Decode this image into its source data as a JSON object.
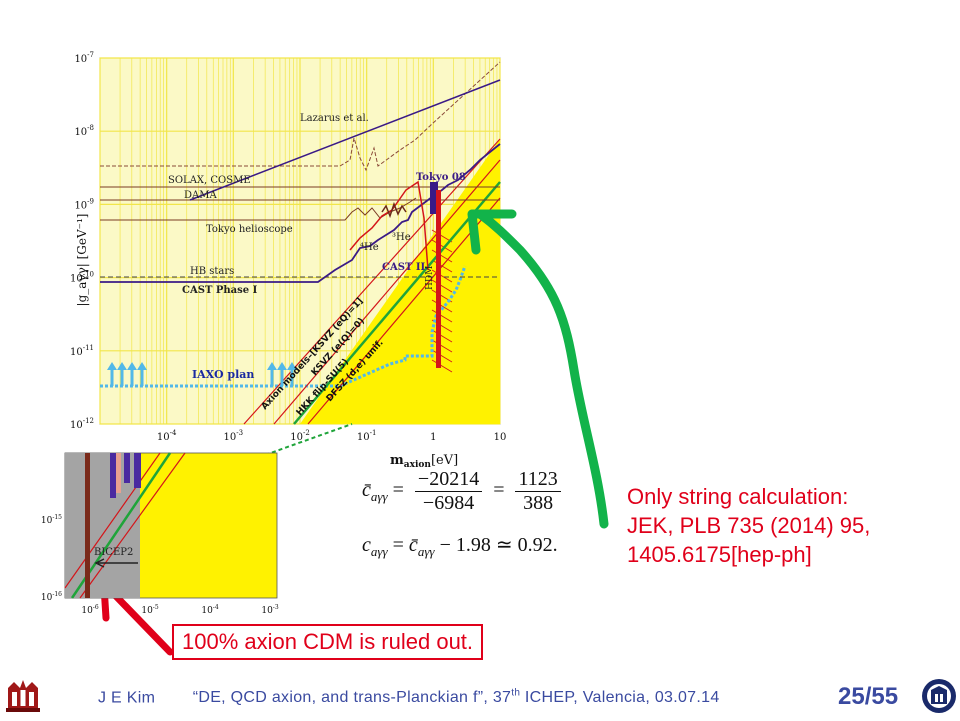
{
  "main_chart": {
    "x_axis_label": "m_axion[eV]",
    "x_label_main": "m",
    "x_label_sub": "axion",
    "x_label_unit": "[eV]",
    "y_axis_label": "|g_aγγ| [GeV⁻¹]",
    "x_ticks": [
      {
        "value": 0.0001,
        "label": "10",
        "exp": "-4"
      },
      {
        "value": 0.001,
        "label": "10",
        "exp": "-3"
      },
      {
        "value": 0.01,
        "label": "10",
        "exp": "-2"
      },
      {
        "value": 0.1,
        "label": "10",
        "exp": "-1"
      },
      {
        "value": 1,
        "label": "1",
        "exp": ""
      },
      {
        "value": 10,
        "label": "10",
        "exp": ""
      }
    ],
    "y_ticks": [
      {
        "value": 1e-07,
        "label": "10",
        "exp": "-7"
      },
      {
        "value": 1e-08,
        "label": "10",
        "exp": "-8"
      },
      {
        "value": 1e-09,
        "label": "10",
        "exp": "-9"
      },
      {
        "value": 1e-10,
        "label": "10",
        "exp": "-10"
      },
      {
        "value": 1e-11,
        "label": "10",
        "exp": "-11"
      },
      {
        "value": 1e-12,
        "label": "10",
        "exp": "-12"
      }
    ],
    "annotations": {
      "lazarus": "Lazarus et al.",
      "solax": "SOLAX, COSME",
      "dama": "DAMA",
      "tokyo_helio": "Tokyo helioscope",
      "hb_stars": "HB stars",
      "cast1": "CAST Phase I",
      "cast2": "CAST II",
      "he4": "⁴He",
      "he3": "³He",
      "tokyo08": "Tokyo 08",
      "hdm": "HDM",
      "iaxo": "IAXO plan",
      "model_axion": "Axion models–[KSVZ (eQ)=1]",
      "model_ksvz0": "KSVZ (e(Q)=0)",
      "model_hkk": "HKK flip-SU(5)",
      "model_dfsz": "DFSZ (d,e) unif."
    },
    "colors": {
      "plot_bg": "#fbf9c6",
      "grid": "#f2e64a",
      "axion_band": "#fff200",
      "cast": "#3a1a86",
      "red_line": "#d4151a",
      "green_line": "#1fa43a",
      "blue_dots": "#52b8e8",
      "brown": "#7a3a22"
    }
  },
  "inset_chart": {
    "x_ticks": [
      {
        "label": "10",
        "exp": "-6"
      },
      {
        "label": "10",
        "exp": "-5"
      },
      {
        "label": "10",
        "exp": "-4"
      },
      {
        "label": "10",
        "exp": "-3"
      }
    ],
    "y_ticks": [
      {
        "label": "10",
        "exp": "-15"
      },
      {
        "label": "10",
        "exp": "-16"
      }
    ],
    "bicep_label": "BICEP2",
    "colors": {
      "gray": "#a4a4a4",
      "yellow": "#fff200",
      "purple": "#4a2aa0",
      "salmon": "#e8a090"
    }
  },
  "formula": {
    "line1_lhs": "c̄",
    "line1_sub": "aγγ",
    "line1_num1": "−20214",
    "line1_den1": "−6984",
    "line1_num2": "1123",
    "line1_den2": "388",
    "line2_lhs": "c",
    "line2_sub": "aγγ",
    "line2_rhs_var": "c̄",
    "line2_rhs_sub": "aγγ",
    "line2_rhs_rest": " − 1.98 ≃ 0.92."
  },
  "notes": {
    "string_line1": "Only string calculation:",
    "string_line2": "JEK, PLB 735 (2014) 95,",
    "string_line3": "1405.6175[hep-ph]",
    "ruled_out": "100% axion CDM is ruled out."
  },
  "footer": {
    "author": "J E Kim",
    "title_part1": "“DE, QCD axion, and trans-Planckian f”, 37",
    "title_sup": "th",
    "title_part2": " ICHEP, Valencia, 03.07.14",
    "page": "25/55"
  },
  "arrows": {
    "green": "#12b34a",
    "red": "#e0001a"
  }
}
